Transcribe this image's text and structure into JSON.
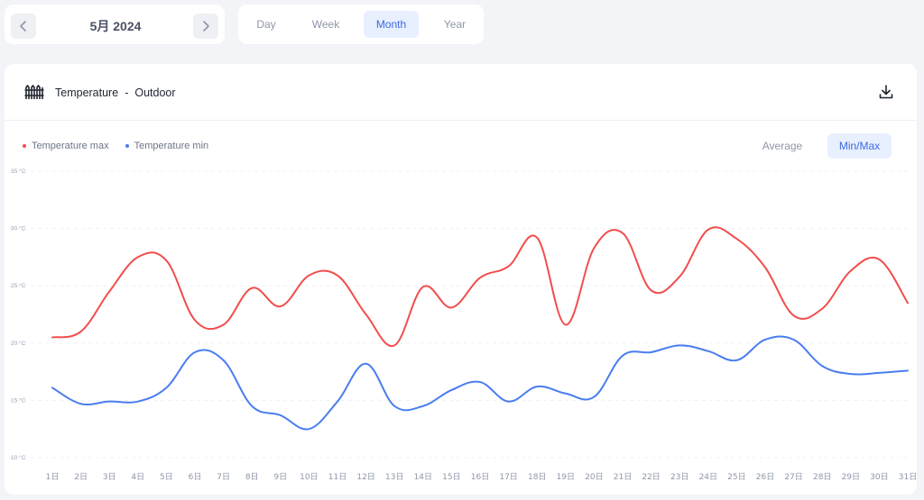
{
  "date_nav": {
    "label": "5月 2024"
  },
  "range_tabs": [
    {
      "label": "Day",
      "active": false
    },
    {
      "label": "Week",
      "active": false
    },
    {
      "label": "Month",
      "active": true
    },
    {
      "label": "Year",
      "active": false
    }
  ],
  "panel": {
    "title": "Temperature",
    "separator": "-",
    "subtitle": "Outdoor",
    "modes": [
      {
        "label": "Average",
        "active": false
      },
      {
        "label": "Min/Max",
        "active": true
      }
    ]
  },
  "colors": {
    "max": "#f24d4d",
    "min": "#4a7df0",
    "accent": "#3d6ae0"
  },
  "chart_data": {
    "type": "line",
    "x": [
      "1日",
      "2日",
      "3日",
      "4日",
      "5日",
      "6日",
      "7日",
      "8日",
      "9日",
      "10日",
      "11日",
      "12日",
      "13日",
      "14日",
      "15日",
      "16日",
      "17日",
      "18日",
      "19日",
      "20日",
      "21日",
      "22日",
      "23日",
      "24日",
      "25日",
      "26日",
      "27日",
      "28日",
      "29日",
      "30日",
      "31日"
    ],
    "y_ticks": [
      "35 °C",
      "30 °C",
      "25 °C",
      "20 °C",
      "15 °C",
      "10 °C"
    ],
    "ylim": [
      10,
      35
    ],
    "grid": true,
    "legend_position": "top-left",
    "series": [
      {
        "name": "Temperature max",
        "color": "#f24d4d",
        "values": [
          20.5,
          21.0,
          24.5,
          27.5,
          27.2,
          22.0,
          21.6,
          24.8,
          23.2,
          25.9,
          25.9,
          22.5,
          19.8,
          24.9,
          23.1,
          25.7,
          26.7,
          29.2,
          21.6,
          28.3,
          29.6,
          24.6,
          25.8,
          29.9,
          29.1,
          26.6,
          22.4,
          23.0,
          26.3,
          27.3,
          23.5
        ]
      },
      {
        "name": "Temperature min",
        "color": "#4a7df0",
        "values": [
          16.1,
          14.7,
          14.9,
          14.9,
          16.1,
          19.2,
          18.5,
          14.5,
          13.7,
          12.5,
          14.9,
          18.2,
          14.5,
          14.5,
          15.9,
          16.6,
          14.9,
          16.2,
          15.6,
          15.3,
          18.9,
          19.2,
          19.8,
          19.3,
          18.5,
          20.3,
          20.3,
          18.0,
          17.3,
          17.4,
          17.6
        ]
      }
    ]
  }
}
